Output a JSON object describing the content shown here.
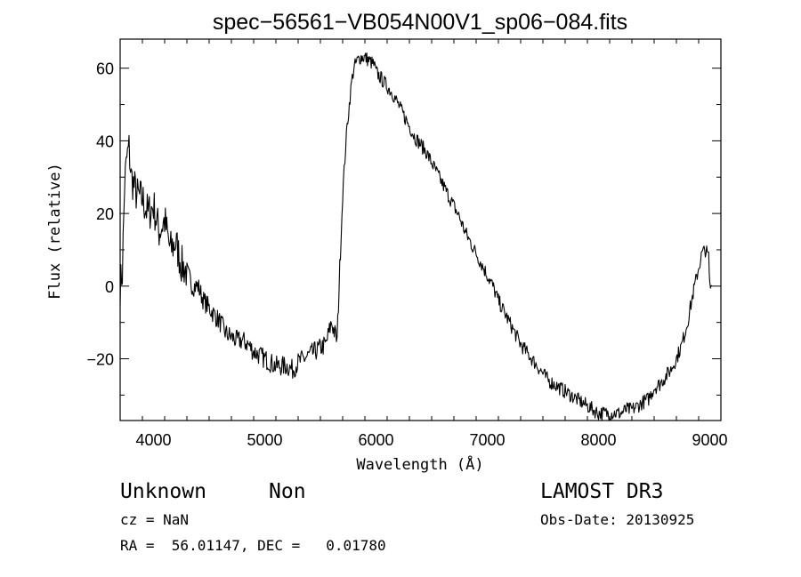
{
  "chart_data": {
    "type": "line",
    "title": "spec−56561−VB054N00V1_sp06−084.fits",
    "xlabel": "Wavelength (Å)",
    "ylabel": "Flux (relative)",
    "xlim": [
      3700,
      9100
    ],
    "ylim": [
      -37,
      68
    ],
    "x_ticks": [
      4000,
      5000,
      6000,
      7000,
      8000,
      9000
    ],
    "x_tick_labels": [
      "4000",
      "5000",
      "6000",
      "7000",
      "8000",
      "9000"
    ],
    "y_ticks": [
      -20,
      0,
      20,
      40,
      60
    ],
    "y_tick_labels": [
      "−20",
      "0",
      "20",
      "40",
      "60"
    ],
    "series": [
      {
        "name": "flux",
        "x": [
          3700,
          3720,
          3740,
          3760,
          3780,
          3800,
          3850,
          3900,
          3950,
          4000,
          4050,
          4100,
          4150,
          4200,
          4250,
          4300,
          4350,
          4400,
          4450,
          4500,
          4550,
          4600,
          4650,
          4700,
          4750,
          4800,
          4850,
          4900,
          4950,
          5000,
          5050,
          5100,
          5150,
          5200,
          5250,
          5300,
          5350,
          5400,
          5450,
          5500,
          5550,
          5600,
          5650,
          5680,
          5700,
          5720,
          5740,
          5760,
          5780,
          5800,
          5830,
          5860,
          5900,
          5940,
          5980,
          6000,
          6050,
          6100,
          6150,
          6200,
          6250,
          6300,
          6350,
          6400,
          6450,
          6500,
          6550,
          6600,
          6650,
          6700,
          6750,
          6800,
          6850,
          6900,
          6950,
          7000,
          7050,
          7100,
          7150,
          7200,
          7250,
          7300,
          7350,
          7400,
          7450,
          7500,
          7550,
          7600,
          7650,
          7700,
          7750,
          7800,
          7850,
          7900,
          7950,
          8000,
          8050,
          8100,
          8150,
          8200,
          8250,
          8300,
          8350,
          8400,
          8450,
          8500,
          8550,
          8600,
          8650,
          8700,
          8750,
          8800,
          8850,
          8900,
          8930,
          8960,
          8990,
          9000,
          9020
        ],
        "y": [
          0,
          4,
          28,
          35,
          38,
          30,
          25,
          24,
          20,
          22,
          15,
          18,
          10,
          12,
          6,
          4,
          0,
          0,
          -4,
          -6,
          -8,
          -10,
          -13,
          -14,
          -15,
          -15,
          -16,
          -18,
          -19,
          -20,
          -21,
          -22,
          -22,
          -22,
          -23,
          -21,
          -20,
          -19,
          -18,
          -17,
          -16,
          -10,
          -15,
          10,
          25,
          35,
          44,
          50,
          56,
          60,
          62,
          63,
          63,
          62,
          61,
          59,
          57,
          55,
          53,
          50,
          47,
          44,
          41,
          39,
          37,
          34,
          31,
          28,
          25,
          22,
          19,
          15,
          12,
          9,
          6,
          3,
          0,
          -4,
          -7,
          -10,
          -13,
          -16,
          -18,
          -20,
          -22,
          -24,
          -26,
          -27,
          -28,
          -29,
          -30,
          -31,
          -32,
          -33,
          -34,
          -35,
          -35,
          -35,
          -35,
          -35,
          -34,
          -34,
          -33,
          -32,
          -31,
          -28,
          -27,
          -25,
          -23,
          -20,
          -16,
          -10,
          -2,
          5,
          9,
          10,
          8,
          0,
          0
        ]
      }
    ]
  },
  "info": {
    "class": "Unknown",
    "subclass": "Non",
    "cz": "cz = NaN",
    "radec": "RA =  56.01147, DEC =   0.01780",
    "survey": "LAMOST DR3",
    "obs_date": "Obs-Date: 20130925"
  }
}
